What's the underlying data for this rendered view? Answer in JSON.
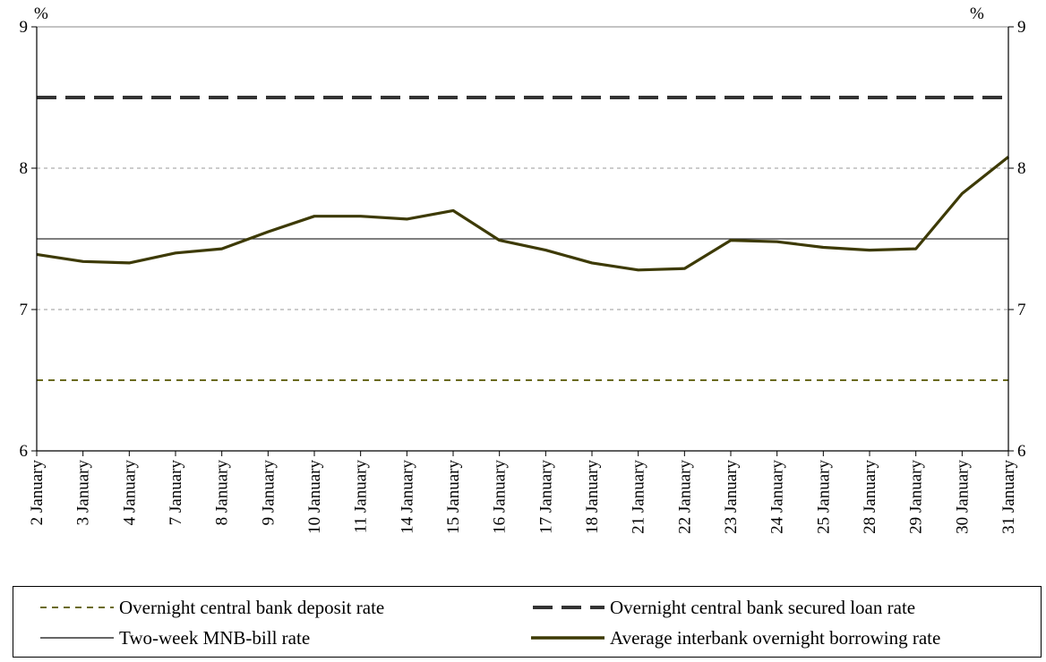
{
  "chart_data": {
    "type": "line",
    "left_unit": "%",
    "right_unit": "%",
    "ylim": [
      6,
      9
    ],
    "y_ticks": [
      6,
      7,
      8,
      9
    ],
    "categories": [
      "2 January",
      "3 January",
      "4 January",
      "7 January",
      "8 January",
      "9 January",
      "10 January",
      "11 January",
      "14 January",
      "15 January",
      "16 January",
      "17 January",
      "18 January",
      "21 January",
      "22 January",
      "23 January",
      "24 January",
      "25 January",
      "28 January",
      "29 January",
      "30 January",
      "31 January"
    ],
    "gridlines": [
      7,
      8
    ],
    "series": [
      {
        "name": "Overnight central bank deposit rate",
        "style": "dashed",
        "color": "#6b6b1e",
        "values": [
          6.5,
          6.5,
          6.5,
          6.5,
          6.5,
          6.5,
          6.5,
          6.5,
          6.5,
          6.5,
          6.5,
          6.5,
          6.5,
          6.5,
          6.5,
          6.5,
          6.5,
          6.5,
          6.5,
          6.5,
          6.5,
          6.5
        ]
      },
      {
        "name": "Overnight central bank secured loan rate",
        "style": "long-dashed-thick",
        "color": "#333333",
        "values": [
          8.5,
          8.5,
          8.5,
          8.5,
          8.5,
          8.5,
          8.5,
          8.5,
          8.5,
          8.5,
          8.5,
          8.5,
          8.5,
          8.5,
          8.5,
          8.5,
          8.5,
          8.5,
          8.5,
          8.5,
          8.5,
          8.5
        ]
      },
      {
        "name": "Two-week MNB-bill rate",
        "style": "thin",
        "color": "#333333",
        "values": [
          7.5,
          7.5,
          7.5,
          7.5,
          7.5,
          7.5,
          7.5,
          7.5,
          7.5,
          7.5,
          7.5,
          7.5,
          7.5,
          7.5,
          7.5,
          7.5,
          7.5,
          7.5,
          7.5,
          7.5,
          7.5,
          7.5
        ]
      },
      {
        "name": "Average interbank overnight borrowing rate",
        "style": "thick",
        "color": "#3d3a05",
        "values": [
          7.39,
          7.34,
          7.33,
          7.4,
          7.43,
          7.55,
          7.66,
          7.66,
          7.64,
          7.7,
          7.49,
          7.42,
          7.33,
          7.28,
          7.29,
          7.49,
          7.48,
          7.44,
          7.42,
          7.43,
          7.82,
          8.08
        ]
      }
    ]
  },
  "legend": {
    "items": [
      {
        "label": "Overnight central bank deposit rate",
        "style": "dashed",
        "color": "#6b6b1e"
      },
      {
        "label": "Overnight central bank secured loan rate",
        "style": "long-dashed-thick",
        "color": "#333333"
      },
      {
        "label": "Two-week MNB-bill rate",
        "style": "thin",
        "color": "#333333"
      },
      {
        "label": "Average interbank overnight borrowing rate",
        "style": "thick",
        "color": "#3d3a05"
      }
    ]
  }
}
